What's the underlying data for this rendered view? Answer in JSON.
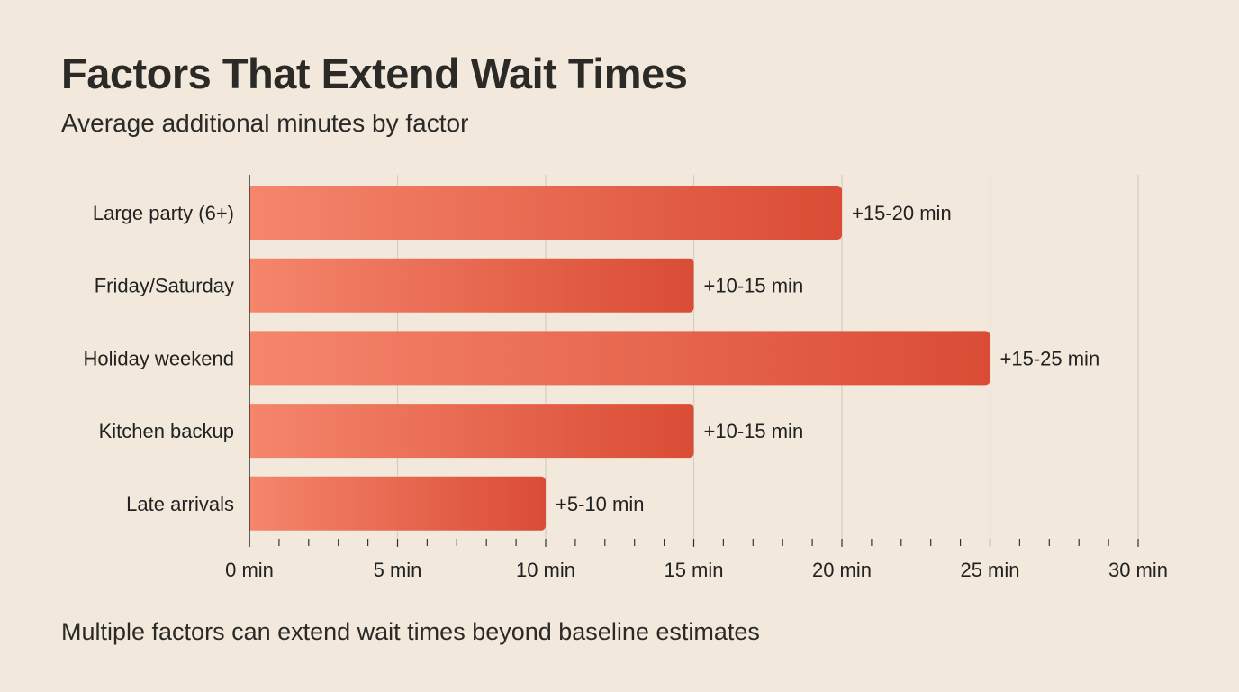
{
  "chart_data": {
    "type": "bar",
    "orientation": "horizontal",
    "title": "Factors That Extend Wait Times",
    "subtitle": "Average additional minutes by factor",
    "footnote": "Multiple factors can extend wait times beyond baseline estimates",
    "categories": [
      "Large party (6+)",
      "Friday/Saturday",
      "Holiday weekend",
      "Kitchen backup",
      "Late arrivals"
    ],
    "values": [
      20,
      15,
      25,
      15,
      10
    ],
    "data_labels": [
      "+15-20 min",
      "+10-15 min",
      "+15-25 min",
      "+10-15 min",
      "+5-10 min"
    ],
    "xlim": [
      0,
      30
    ],
    "x_ticks": [
      0,
      5,
      10,
      15,
      20,
      25,
      30
    ],
    "x_tick_labels": [
      "0 min",
      "5 min",
      "10 min",
      "15 min",
      "20 min",
      "25 min",
      "30 min"
    ],
    "minor_tick_step": 1,
    "grid": true,
    "colors": {
      "bar_start": "#f5866c",
      "bar_end": "#da4c35",
      "background": "#f2e9dc",
      "grid": "#d6cec2"
    }
  }
}
